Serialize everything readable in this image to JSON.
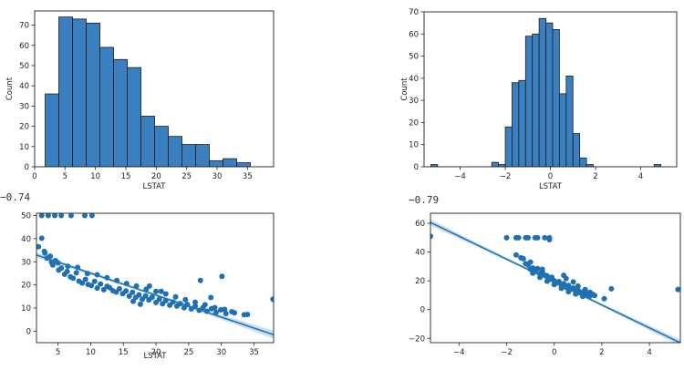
{
  "colors": {
    "bar": "#3a7fbf",
    "bar_edge": "#1c1c1c",
    "point": "#1f6fb2",
    "line": "#1f77b4",
    "band": "#bdd7ee"
  },
  "texts": {
    "corr_left": "−0.74",
    "corr_right": "−0.79"
  },
  "chart_data": [
    {
      "type": "bar",
      "subtype": "histogram",
      "xlabel": "LSTAT",
      "ylabel": "Count",
      "xlim": [
        0,
        39.3
      ],
      "ylim": [
        0,
        77
      ],
      "xticks": [
        0,
        5,
        10,
        15,
        20,
        25,
        30,
        35
      ],
      "yticks": [
        0,
        10,
        20,
        30,
        40,
        50,
        60,
        70
      ],
      "bin_edges": [
        1.73,
        3.98,
        6.23,
        8.48,
        10.73,
        12.98,
        15.23,
        17.48,
        19.73,
        21.98,
        24.23,
        26.48,
        28.73,
        30.98,
        33.23,
        35.48,
        37.73
      ],
      "values": [
        36,
        74,
        73,
        71,
        59,
        53,
        49,
        25,
        20,
        15,
        11,
        11,
        3,
        4,
        2,
        0
      ],
      "grid": false
    },
    {
      "type": "bar",
      "subtype": "histogram",
      "xlabel": "LSTAT",
      "ylabel": "Count",
      "xlim": [
        -5.6,
        5.6
      ],
      "ylim": [
        0,
        70
      ],
      "xticks": [
        -4,
        -2,
        0,
        2,
        4
      ],
      "yticks": [
        0,
        10,
        20,
        30,
        40,
        50,
        60,
        70
      ],
      "bin_edges": [
        -5.3,
        -5.0,
        -4.7,
        -4.4,
        -4.1,
        -3.8,
        -3.5,
        -3.2,
        -2.9,
        -2.6,
        -2.3,
        -2.0,
        -1.7,
        -1.4,
        -1.1,
        -0.8,
        -0.5,
        -0.2,
        0.1,
        0.4,
        0.7,
        1.0,
        1.3,
        1.6,
        1.9,
        2.2,
        2.5,
        2.8,
        3.1,
        3.4,
        3.7,
        4.0,
        4.3,
        4.6,
        4.9,
        5.2
      ],
      "values": [
        1,
        0,
        0,
        0,
        0,
        0,
        0,
        0,
        0,
        2,
        1,
        18,
        38,
        39,
        59,
        60,
        67,
        65,
        62,
        33,
        41,
        15,
        4,
        1,
        0,
        0,
        0,
        0,
        0,
        0,
        0,
        0,
        0,
        1,
        0
      ],
      "grid": false
    },
    {
      "type": "scatter",
      "subtype": "regression",
      "xlabel": "LSTAT",
      "ylabel": "",
      "xlim": [
        1.7,
        38
      ],
      "ylim": [
        -5,
        51
      ],
      "xticks": [
        5,
        10,
        15,
        20,
        25,
        30,
        35
      ],
      "yticks": [
        0,
        10,
        20,
        30,
        40,
        50
      ],
      "regression": {
        "slope": -0.95,
        "intercept": 34.55
      },
      "points_x": [
        2,
        2.5,
        2.9,
        3.3,
        3.8,
        4.2,
        4.6,
        5.1,
        5.5,
        6,
        6.4,
        6.9,
        7.3,
        7.8,
        8.2,
        8.7,
        9.2,
        9.6,
        10.1,
        10.6,
        11,
        11.5,
        12,
        12.5,
        12.9,
        13.4,
        13.9,
        14.4,
        14.9,
        15.4,
        15.9,
        16.4,
        16.9,
        17.4,
        17.9,
        18.4,
        18.9,
        19.4,
        20,
        20.5,
        21,
        21.5,
        22.1,
        22.6,
        23.2,
        23.7,
        24.3,
        24.8,
        25.4,
        26,
        26.6,
        27.2,
        27.8,
        28.5,
        29.2,
        29.9,
        30.7,
        31.6,
        34,
        37.9,
        3,
        4,
        5,
        6.5,
        8,
        9.5,
        11,
        12.5,
        14,
        15.5,
        17,
        18.5,
        20,
        21.5,
        23,
        24.5,
        26,
        27.5,
        29,
        30.5,
        32,
        33.5,
        2.5,
        3.5,
        4.5,
        5.5,
        7,
        9.1,
        10.2,
        30.1,
        26.8,
        20.8,
        19,
        28.4,
        16.5,
        17.6
      ],
      "points_y": [
        36.5,
        40.2,
        34.5,
        31.6,
        32.4,
        28.6,
        30.5,
        26.4,
        27.3,
        24.6,
        25.8,
        23.5,
        22.9,
        25.2,
        21.6,
        20.8,
        22.4,
        20.2,
        19.7,
        21.5,
        18.6,
        20.4,
        17.9,
        19.4,
        18.8,
        17.5,
        16.9,
        18.3,
        16.2,
        17.4,
        15.1,
        16.8,
        14.6,
        15.7,
        13.8,
        15.2,
        13.5,
        14.6,
        12.4,
        13.8,
        11.8,
        13.2,
        11.2,
        12.6,
        10.8,
        11.9,
        10.1,
        11.5,
        9.6,
        10.8,
        9,
        10.2,
        8.6,
        9.7,
        8.1,
        9.2,
        7.6,
        8.4,
        7.2,
        13.8,
        33.8,
        29.9,
        29.5,
        28.1,
        27.6,
        24.9,
        24.4,
        23.1,
        21.9,
        20.6,
        19.5,
        18.1,
        17.2,
        16.1,
        14.8,
        13.6,
        12.5,
        11.4,
        10.2,
        9.4,
        7.9,
        7.1,
        50,
        50,
        50,
        50,
        50,
        50,
        50,
        23.7,
        21.9,
        17.2,
        19.5,
        14.5,
        12.9,
        11.6
      ],
      "grid": false
    },
    {
      "type": "scatter",
      "subtype": "regression",
      "xlabel": "",
      "ylabel": "",
      "xlim": [
        -5.2,
        5.3
      ],
      "ylim": [
        -23,
        67
      ],
      "xticks": [
        -4,
        -2,
        0,
        2,
        4
      ],
      "yticks": [
        -20,
        0,
        20,
        40,
        60
      ],
      "regression": {
        "slope": -7.97,
        "intercept": 19.15
      },
      "points_x": [
        -5.2,
        5.2,
        -1.6,
        -1.4,
        -1.3,
        -1.1,
        -1,
        -0.9,
        -0.8,
        -0.7,
        -0.6,
        -0.5,
        -0.4,
        -0.3,
        -0.2,
        -0.1,
        0,
        0.1,
        0.2,
        0.3,
        0.4,
        0.5,
        0.6,
        0.7,
        0.8,
        0.9,
        1,
        1.1,
        1.2,
        1.3,
        1.4,
        1.5,
        1.6,
        1.7,
        2.1,
        2.4,
        -1.2,
        -0.9,
        -0.6,
        -0.3,
        0,
        0.3,
        0.6,
        0.9,
        1.2,
        1.5,
        -1,
        -0.5,
        0.5,
        1,
        -1.6,
        -1.2,
        -0.8,
        -0.4,
        -0.2,
        -2,
        -1.5,
        -1.1,
        -0.7,
        -0.2,
        0.4,
        0.8,
        1.3
      ],
      "points_y": [
        51,
        14,
        38,
        36,
        35.5,
        31,
        28,
        29,
        27,
        28.5,
        25,
        26.5,
        24,
        23.5,
        21,
        22.5,
        20,
        18.5,
        19.5,
        17,
        18,
        15.5,
        16.8,
        14.2,
        15,
        12.8,
        13.6,
        11.5,
        12.2,
        10.2,
        11,
        9.4,
        10.8,
        9.8,
        7.6,
        14.5,
        32,
        25.3,
        22.4,
        19.8,
        17.4,
        14.8,
        12.4,
        10.8,
        9.2,
        12,
        33,
        28,
        21.6,
        16.4,
        50,
        50,
        50,
        50,
        50,
        50,
        50,
        50,
        50,
        48.6,
        23.8,
        19.2,
        13.9
      ],
      "grid": false
    }
  ]
}
